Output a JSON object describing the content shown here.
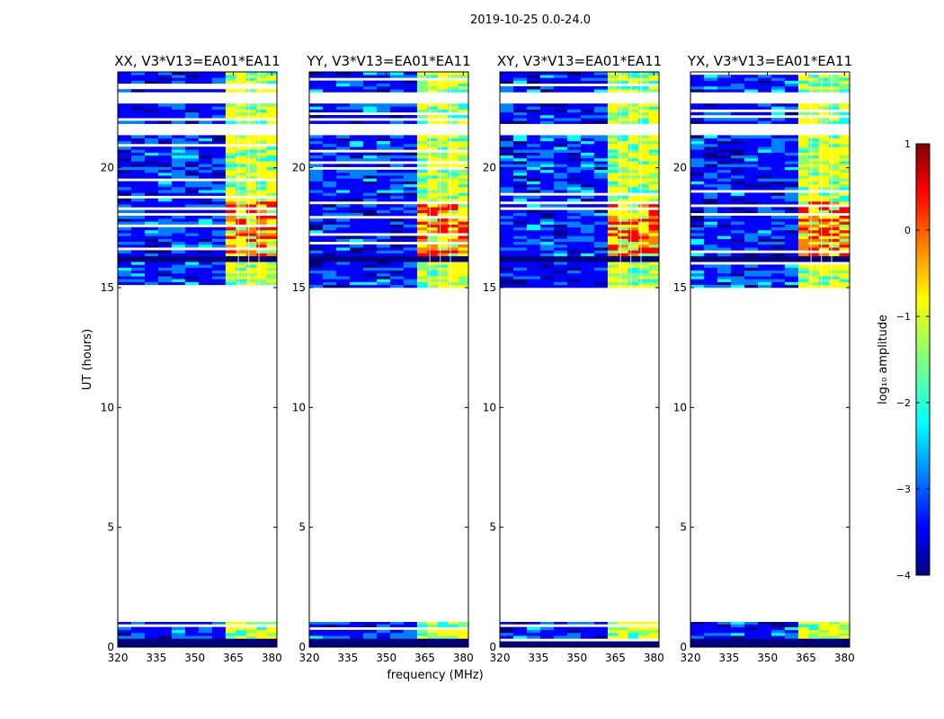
{
  "suptitle": "2019-10-25 0.0-24.0",
  "colors": {
    "jet": [
      "#00007f",
      "#0000ff",
      "#007fff",
      "#00ffff",
      "#7fff7f",
      "#ffff00",
      "#ff7f00",
      "#ff0000",
      "#7f0000"
    ]
  },
  "chart_data": {
    "type": "heatmap",
    "title": "2019-10-25 0.0-24.0",
    "xlabel": "frequency (MHz)",
    "ylabel": "UT (hours)",
    "xlim": [
      320,
      382
    ],
    "ylim": [
      0,
      24
    ],
    "xticks": [
      "320",
      "335",
      "350",
      "365",
      "380"
    ],
    "yticks": [
      "0",
      "5",
      "10",
      "15",
      "20"
    ],
    "panels": [
      {
        "title": "XX, V3*V13=EA01*EA11"
      },
      {
        "title": "YY, V3*V13=EA01*EA11"
      },
      {
        "title": "XY, V3*V13=EA01*EA11"
      },
      {
        "title": "YX, V3*V13=EA01*EA11"
      }
    ],
    "data_segments_hours": [
      [
        0.0,
        1.05
      ],
      [
        15.0,
        24.0
      ]
    ],
    "gaps_hours": [
      [
        1.05,
        15.0
      ],
      [
        22.6,
        23.1
      ],
      [
        21.3,
        21.8
      ]
    ],
    "rfi_band_mhz": [
      362,
      382
    ],
    "colorbar": {
      "label": "log₁₀ amplitude",
      "vmin": -4,
      "vmax": 1,
      "ticks": [
        "1",
        "0",
        "−1",
        "−2",
        "−3",
        "−4"
      ]
    }
  }
}
